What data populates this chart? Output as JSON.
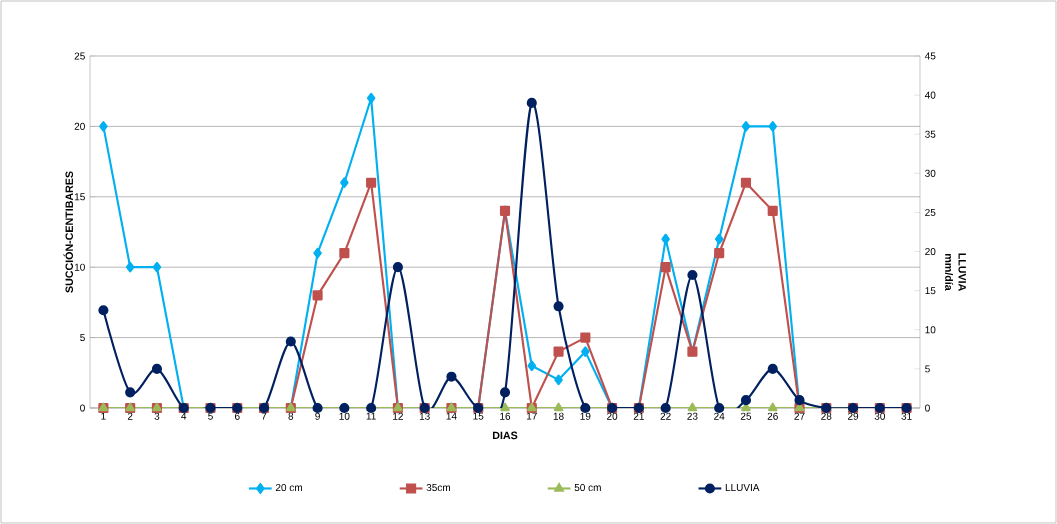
{
  "chart_data": {
    "type": "line",
    "xlabel": "DIAS",
    "ylabel": "SUCCIÓN-CENTIBARES",
    "y2label": "LLUVIA mm/día",
    "categories": [
      "1",
      "2",
      "3",
      "4",
      "5",
      "6",
      "7",
      "8",
      "9",
      "10",
      "11",
      "12",
      "13",
      "14",
      "15",
      "16",
      "17",
      "18",
      "19",
      "20",
      "21",
      "22",
      "23",
      "24",
      "25",
      "26",
      "27",
      "28",
      "29",
      "30",
      "31"
    ],
    "series": [
      {
        "name": "20 cm",
        "color": "#00b0f0",
        "marker": "diamond",
        "values": [
          20,
          10,
          10,
          0,
          0,
          0,
          0,
          0,
          11,
          16,
          22,
          0,
          0,
          0,
          0,
          14,
          3,
          2,
          4,
          0,
          0,
          12,
          4,
          12,
          20,
          20,
          0,
          0,
          null,
          null,
          null
        ]
      },
      {
        "name": "35cm",
        "color": "#c0504d",
        "marker": "square",
        "values": [
          0,
          0,
          0,
          0,
          0,
          0,
          0,
          0,
          8,
          11,
          16,
          0,
          0,
          0,
          0,
          14,
          0,
          4,
          5,
          0,
          0,
          10,
          4,
          11,
          16,
          14,
          0,
          0,
          0,
          0,
          0
        ]
      },
      {
        "name": "50 cm",
        "color": "#9bbb59",
        "marker": "triangle",
        "values": [
          0,
          0,
          0,
          0,
          0,
          0,
          0,
          0,
          0,
          0,
          0,
          0,
          0,
          0,
          0,
          0,
          0,
          0,
          0,
          0,
          0,
          0,
          0,
          0,
          0,
          0,
          0,
          0,
          0,
          null,
          null
        ]
      },
      {
        "name": "LLUVIA",
        "color": "#002060",
        "marker": "circle",
        "axis": "y2",
        "values": [
          12.5,
          2,
          5,
          0,
          0,
          0,
          0,
          8.5,
          0,
          0,
          0,
          18,
          0,
          4,
          0,
          2,
          39,
          13,
          0,
          0,
          0,
          0,
          17,
          0,
          1,
          5,
          1,
          0,
          0,
          0,
          0
        ]
      }
    ],
    "ylim": [
      0,
      25
    ],
    "yticks": [
      0,
      5,
      10,
      15,
      20,
      25
    ],
    "y2lim": [
      0,
      45
    ],
    "y2ticks": [
      0,
      5,
      10,
      15,
      20,
      25,
      30,
      35,
      40,
      45
    ],
    "grid": "y",
    "legend": "bottom",
    "line_style": "solid"
  }
}
